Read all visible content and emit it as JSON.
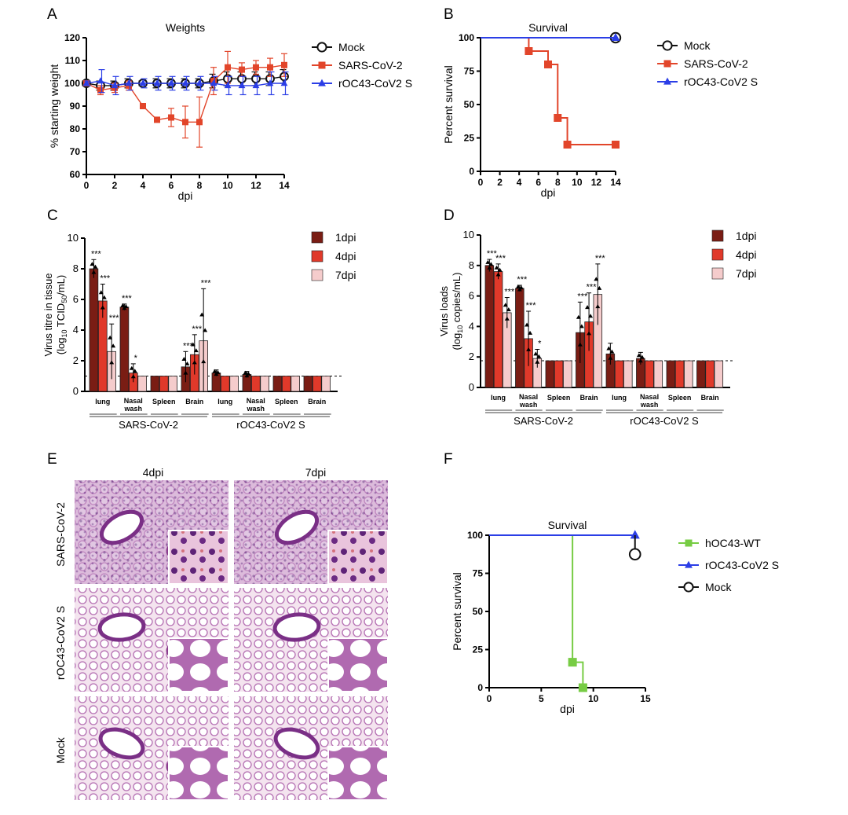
{
  "panels": {
    "A": "A",
    "B": "B",
    "C": "C",
    "D": "D",
    "E": "E",
    "F": "F"
  },
  "colors": {
    "mock": "#111111",
    "sars": "#e2452a",
    "roc43": "#2b3ee6",
    "hoc43": "#77cc44",
    "dpi1": "#7a1d14",
    "dpi4": "#e0392a",
    "dpi7": "#f5cccc",
    "he_pink": "#e7b7d6",
    "he_purple": "#7a3b8a"
  },
  "chart_data": [
    {
      "panel": "A",
      "type": "line",
      "title": "Weights",
      "xlabel": "dpi",
      "ylabel": "% starting weight",
      "xlim": [
        0,
        14
      ],
      "ylim": [
        60,
        120
      ],
      "xticks": [
        "0",
        "2",
        "4",
        "6",
        "8",
        "10",
        "12",
        "14"
      ],
      "yticks": [
        "60",
        "70",
        "80",
        "90",
        "100",
        "110",
        "120"
      ],
      "series": [
        {
          "name": "Mock",
          "marker": "circle",
          "color": "#111111",
          "x": [
            0,
            1,
            2,
            3,
            4,
            5,
            6,
            7,
            8,
            9,
            10,
            11,
            12,
            13,
            14
          ],
          "y": [
            100,
            99,
            99,
            100,
            100,
            100,
            100,
            100,
            100,
            101,
            102,
            102,
            102,
            102,
            103
          ],
          "err": [
            1,
            2,
            2,
            2,
            1,
            2,
            2,
            2,
            2,
            3,
            3,
            3,
            3,
            3,
            3
          ]
        },
        {
          "name": "SARS-CoV-2",
          "marker": "square",
          "color": "#e2452a",
          "x": [
            0,
            1,
            2,
            3,
            4,
            5,
            6,
            7,
            8,
            9,
            10,
            11,
            12,
            13,
            14
          ],
          "y": [
            100,
            97,
            98,
            99,
            90,
            84,
            85,
            83,
            83,
            101,
            107,
            106,
            107,
            107,
            108
          ],
          "err": [
            1,
            2,
            2,
            2,
            1,
            1,
            4,
            7,
            11,
            6,
            7,
            3,
            3,
            4,
            5
          ]
        },
        {
          "name": "rOC43-CoV2 S",
          "marker": "triangle",
          "color": "#2b3ee6",
          "x": [
            0,
            1,
            2,
            3,
            4,
            5,
            6,
            7,
            8,
            9,
            10,
            11,
            12,
            13,
            14
          ],
          "y": [
            100,
            101,
            99,
            100,
            100,
            100,
            100,
            100,
            100,
            100,
            99,
            99,
            99,
            100,
            100
          ],
          "err": [
            1,
            5,
            4,
            3,
            2,
            3,
            3,
            3,
            3,
            3,
            4,
            4,
            4,
            5,
            5
          ]
        }
      ]
    },
    {
      "panel": "B",
      "type": "line",
      "title": "Survival",
      "xlabel": "dpi",
      "ylabel": "Percent survival",
      "xlim": [
        0,
        14
      ],
      "ylim": [
        0,
        100
      ],
      "xticks": [
        "0",
        "2",
        "4",
        "6",
        "8",
        "10",
        "12",
        "14"
      ],
      "yticks": [
        "0",
        "25",
        "50",
        "75",
        "100"
      ],
      "series": [
        {
          "name": "Mock",
          "marker": "circle",
          "color": "#111111",
          "x": [
            0,
            14
          ],
          "y": [
            100,
            100
          ],
          "points": [
            [
              14,
              100
            ]
          ]
        },
        {
          "name": "SARS-CoV-2",
          "marker": "square",
          "color": "#e2452a",
          "x": [
            0,
            5,
            5,
            7,
            7,
            8,
            8,
            9,
            9,
            14
          ],
          "y": [
            100,
            100,
            90,
            90,
            80,
            80,
            40,
            40,
            20,
            20
          ],
          "points": [
            [
              5,
              90
            ],
            [
              7,
              80
            ],
            [
              8,
              40
            ],
            [
              9,
              20
            ],
            [
              14,
              20
            ]
          ]
        },
        {
          "name": "rOC43-CoV2 S",
          "marker": "triangle",
          "color": "#2b3ee6",
          "x": [
            0,
            14
          ],
          "y": [
            100,
            100
          ],
          "points": [
            [
              14,
              100
            ]
          ]
        }
      ]
    },
    {
      "panel": "C",
      "type": "bar",
      "ylabel_line1": "Virus titre in tissue",
      "ylabel_line2": "(log",
      "ylabel_sub": "10",
      "ylabel_rest": " TCID",
      "ylabel_sub2": "50",
      "ylabel_end": "/mL)",
      "ylim": [
        0,
        10
      ],
      "yticks": [
        "0",
        "2",
        "4",
        "6",
        "8",
        "10"
      ],
      "detection_limit": 1,
      "categories": [
        "lung",
        "Nasal wash",
        "Spleen",
        "Brain",
        "lung",
        "Nasal wash",
        "Spleen",
        "Brain"
      ],
      "groups": [
        "SARS-CoV-2",
        "rOC43-CoV2 S"
      ],
      "series": [
        {
          "name": "1dpi",
          "values": [
            8.0,
            5.5,
            1.0,
            1.6,
            1.2,
            1.1,
            1.0,
            1.0
          ],
          "err": [
            0.6,
            0.2,
            0,
            1.0,
            0.2,
            0.2,
            0,
            0
          ]
        },
        {
          "name": "4dpi",
          "values": [
            5.9,
            1.2,
            1.0,
            2.4,
            1.0,
            1.0,
            1.0,
            1.0
          ],
          "err": [
            1.1,
            0.6,
            0,
            1.3,
            0,
            0,
            0,
            0
          ]
        },
        {
          "name": "7dpi",
          "values": [
            2.6,
            1.0,
            1.0,
            3.3,
            1.0,
            1.0,
            1.0,
            1.0
          ],
          "err": [
            1.8,
            0,
            0,
            3.4,
            0,
            0,
            0,
            0
          ]
        }
      ],
      "stars": [
        {
          "cat": 0,
          "s": 0,
          "label": "***"
        },
        {
          "cat": 0,
          "s": 1,
          "label": "***"
        },
        {
          "cat": 0,
          "s": 2,
          "label": "***"
        },
        {
          "cat": 1,
          "s": 0,
          "label": "***"
        },
        {
          "cat": 1,
          "s": 1,
          "label": "*"
        },
        {
          "cat": 3,
          "s": 0,
          "label": "***"
        },
        {
          "cat": 3,
          "s": 1,
          "label": "***"
        },
        {
          "cat": 3,
          "s": 2,
          "label": "***"
        }
      ]
    },
    {
      "panel": "D",
      "type": "bar",
      "ylabel_line1": "Virus loads",
      "ylabel_line2": "(log",
      "ylabel_sub": "10",
      "ylabel_rest": " copies/mL)",
      "ylim": [
        0,
        10
      ],
      "yticks": [
        "0",
        "2",
        "4",
        "6",
        "8",
        "10"
      ],
      "detection_limit": 1.75,
      "categories": [
        "lung",
        "Nasal wash",
        "Spleen",
        "Brain",
        "lung",
        "Nasal wash",
        "Spleen",
        "Brain"
      ],
      "groups": [
        "SARS-CoV-2",
        "rOC43-CoV2 S"
      ],
      "series": [
        {
          "name": "1dpi",
          "values": [
            8.0,
            6.5,
            1.75,
            3.6,
            2.2,
            1.9,
            1.75,
            1.75
          ],
          "err": [
            0.4,
            0.2,
            0,
            2.0,
            0.7,
            0.4,
            0,
            0
          ]
        },
        {
          "name": "4dpi",
          "values": [
            7.6,
            3.2,
            1.75,
            4.3,
            1.75,
            1.75,
            1.75,
            1.75
          ],
          "err": [
            0.5,
            1.8,
            0,
            1.9,
            0,
            0,
            0,
            0
          ]
        },
        {
          "name": "7dpi",
          "values": [
            4.9,
            1.9,
            1.75,
            6.1,
            1.75,
            1.75,
            1.75,
            1.75
          ],
          "err": [
            1.0,
            0.6,
            0,
            2.0,
            0,
            0,
            0,
            0
          ]
        }
      ],
      "stars": [
        {
          "cat": 0,
          "s": 0,
          "label": "***"
        },
        {
          "cat": 0,
          "s": 1,
          "label": "***"
        },
        {
          "cat": 0,
          "s": 2,
          "label": "***"
        },
        {
          "cat": 1,
          "s": 0,
          "label": "***"
        },
        {
          "cat": 1,
          "s": 1,
          "label": "***"
        },
        {
          "cat": 1,
          "s": 2,
          "label": "*"
        },
        {
          "cat": 3,
          "s": 0,
          "label": "***"
        },
        {
          "cat": 3,
          "s": 1,
          "label": "***"
        },
        {
          "cat": 3,
          "s": 2,
          "label": "***"
        }
      ]
    },
    {
      "panel": "F",
      "type": "line",
      "title": "Survival",
      "xlabel": "dpi",
      "ylabel": "Percent survival",
      "xlim": [
        0,
        15
      ],
      "ylim": [
        0,
        100
      ],
      "xticks": [
        "0",
        "5",
        "10",
        "15"
      ],
      "yticks": [
        "0",
        "25",
        "50",
        "75",
        "100"
      ],
      "series": [
        {
          "name": "hOC43-WT",
          "marker": "square",
          "color": "#77cc44",
          "x": [
            0,
            8,
            8,
            9,
            9
          ],
          "y": [
            100,
            100,
            16.7,
            16.7,
            0
          ],
          "points": [
            [
              8,
              16.7
            ],
            [
              9,
              0
            ]
          ]
        },
        {
          "name": "rOC43-CoV2 S",
          "marker": "triangle",
          "color": "#2b3ee6",
          "x": [
            0,
            14
          ],
          "y": [
            100,
            100
          ],
          "points": [
            [
              14,
              100
            ]
          ]
        },
        {
          "name": "Mock",
          "marker": "circle",
          "color": "#111111",
          "x": [
            14,
            14
          ],
          "y": [
            100,
            87.5
          ],
          "points": [
            [
              14,
              87.5
            ]
          ]
        }
      ]
    }
  ],
  "histology": {
    "col_labels": [
      "4dpi",
      "7dpi"
    ],
    "row_labels": [
      "SARS-CoV-2",
      "rOC43-CoV2 S",
      "Mock"
    ]
  }
}
